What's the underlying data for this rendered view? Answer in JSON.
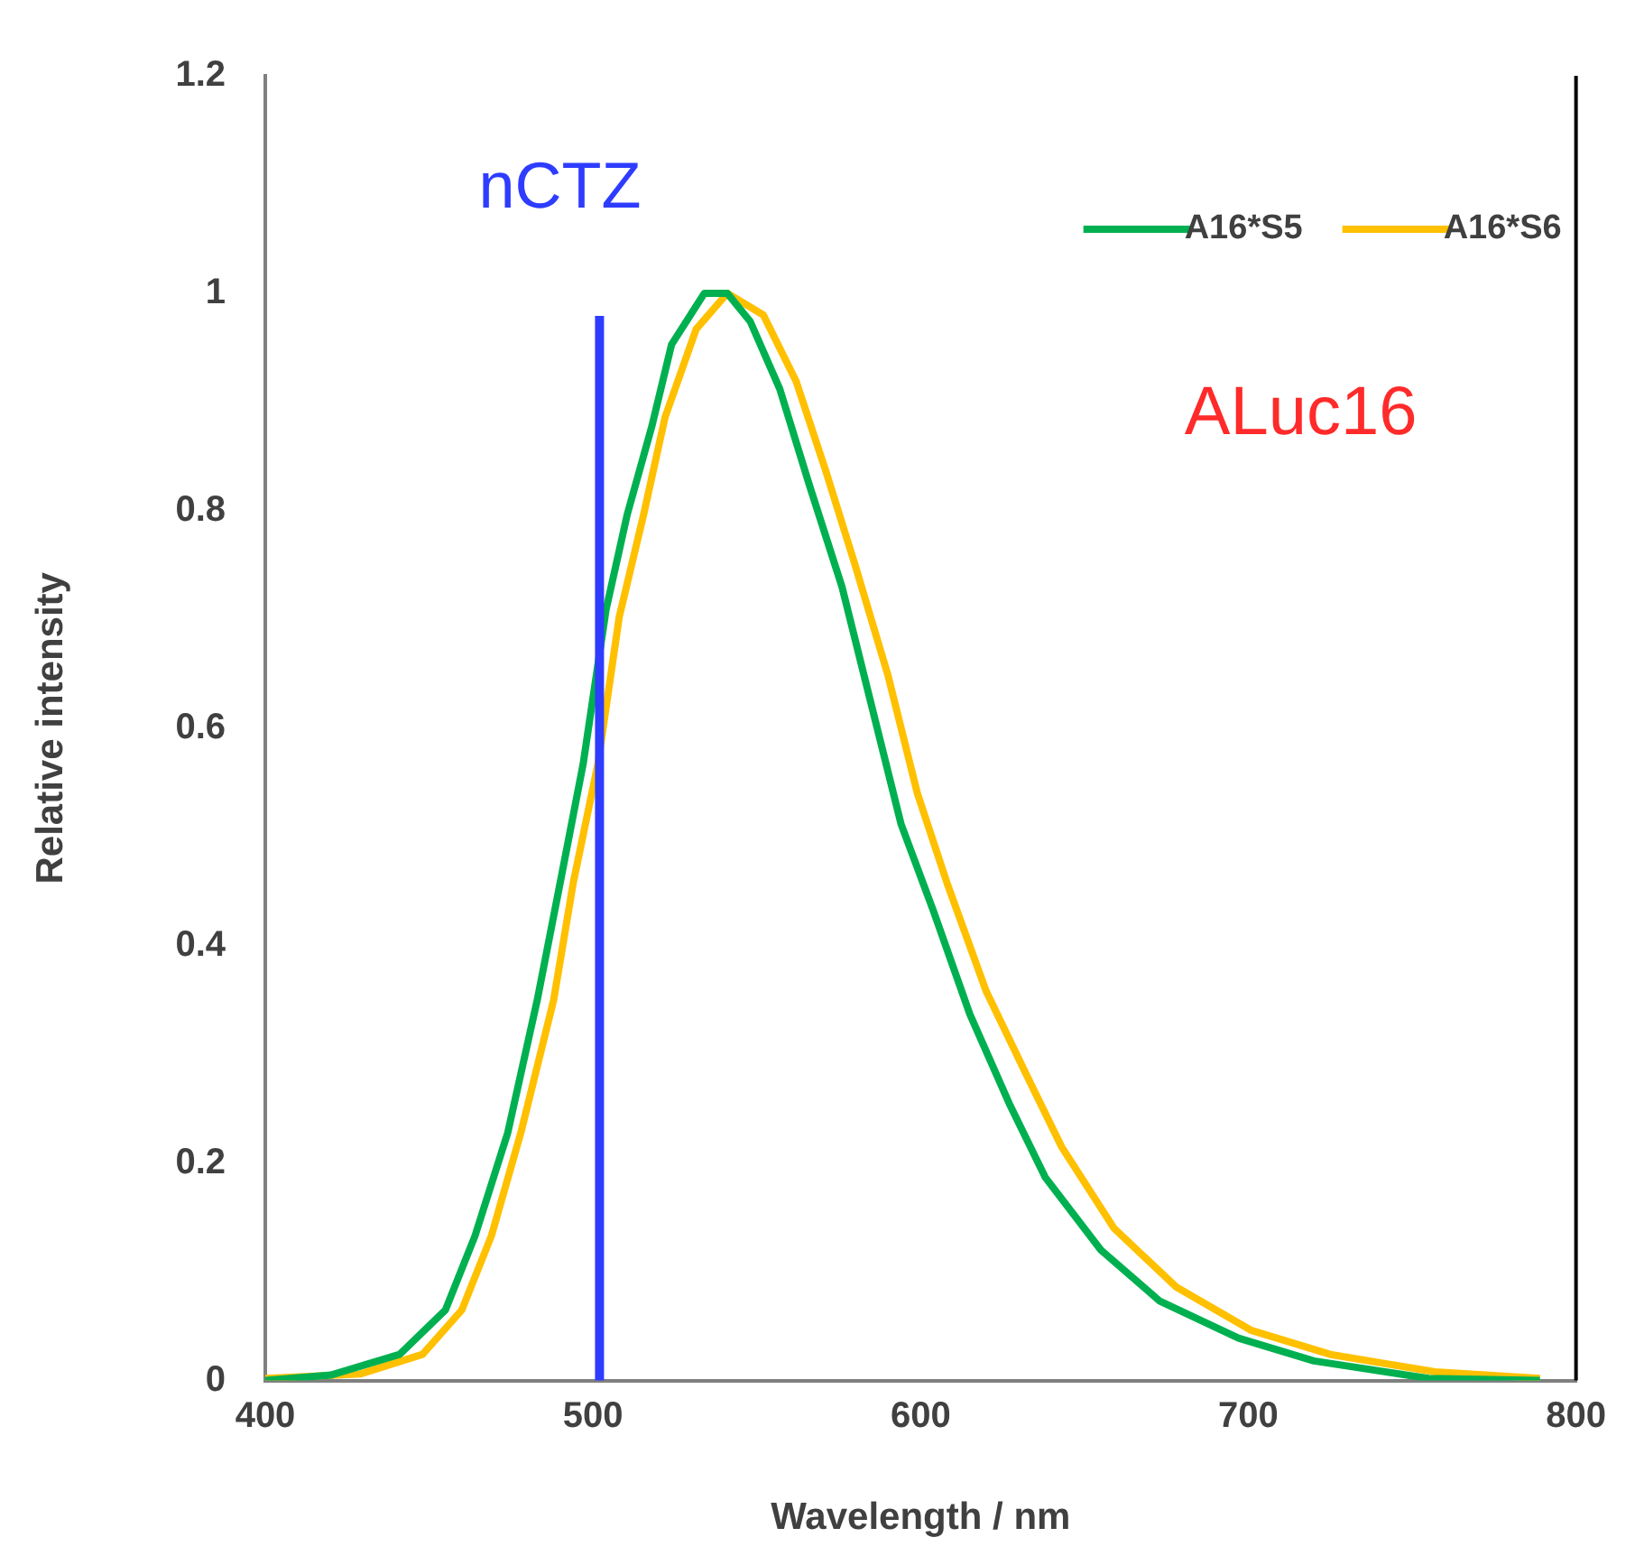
{
  "chart_data": {
    "type": "line",
    "xlabel": "Wavelength / nm",
    "ylabel": "Relative intensity",
    "xlim": [
      400,
      800
    ],
    "xticks": [
      400,
      500,
      600,
      700,
      800
    ],
    "ylim": [
      0,
      1.2
    ],
    "yticks": [
      0,
      0.2,
      0.4,
      0.6,
      0.8,
      1,
      1.2
    ],
    "grid": false,
    "legend": "top right",
    "marker": "none",
    "line_style": "solid",
    "series": [
      {
        "name": "A16*S5",
        "color": "#00b050",
        "x": [
          400,
          420,
          441,
          455,
          464,
          474,
          483,
          490,
          497,
          504,
          510.5,
          518,
          524,
          534,
          541,
          548,
          557,
          566,
          576,
          585,
          594,
          604,
          615,
          627,
          638,
          655,
          673,
          697,
          720,
          755,
          789
        ],
        "values": [
          0,
          0.005,
          0.024,
          0.065,
          0.133,
          0.228,
          0.35,
          0.458,
          0.567,
          0.709,
          0.797,
          0.878,
          0.953,
          1.0,
          1.0,
          0.974,
          0.912,
          0.824,
          0.73,
          0.621,
          0.512,
          0.431,
          0.337,
          0.255,
          0.187,
          0.12,
          0.073,
          0.039,
          0.018,
          0.002,
          0
        ]
      },
      {
        "name": "A16*S6",
        "color": "#ffc000",
        "x": [
          400,
          429,
          448,
          460,
          469,
          478,
          488,
          494,
          501.5,
          508,
          515.5,
          522,
          531.5,
          541,
          552,
          562,
          571,
          580,
          590,
          599,
          608,
          620,
          632,
          643,
          659,
          678,
          701,
          725,
          757,
          789
        ],
        "values": [
          0.002,
          0.006,
          0.024,
          0.065,
          0.133,
          0.228,
          0.35,
          0.458,
          0.567,
          0.702,
          0.797,
          0.886,
          0.967,
          1.0,
          0.98,
          0.919,
          0.837,
          0.75,
          0.649,
          0.54,
          0.458,
          0.358,
          0.283,
          0.215,
          0.14,
          0.086,
          0.046,
          0.024,
          0.008,
          0.002
        ]
      }
    ],
    "ref_lines": [
      {
        "axis": "x",
        "value": 502,
        "label": "nCTZ",
        "color": "#2e3cff"
      }
    ],
    "annotations": [
      "ALuc16"
    ]
  }
}
